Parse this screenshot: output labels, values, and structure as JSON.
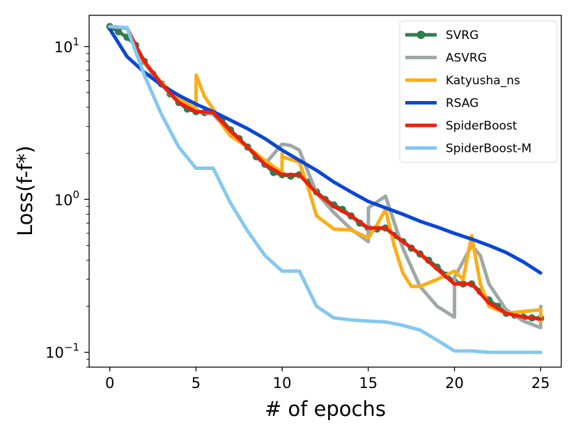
{
  "chart_data": {
    "type": "line",
    "title": "",
    "xlabel": "# of epochs",
    "ylabel": "Loss(f-f*)",
    "xscale": "linear",
    "yscale": "log",
    "xlim": [
      -1.2,
      26.2
    ],
    "ylim": [
      0.08,
      16
    ],
    "xticks": [
      0,
      5,
      10,
      15,
      20,
      25
    ],
    "yticks": [
      {
        "value": 0.1,
        "label": "10^-1"
      },
      {
        "value": 1,
        "label": "10^0"
      },
      {
        "value": 10,
        "label": "10^1"
      }
    ],
    "grid": false,
    "legend_position": "top-right",
    "series": [
      {
        "name": "SVRG",
        "color": "#2e7d4f",
        "marker": "circle",
        "x": [
          0,
          0.5,
          1,
          1.5,
          2,
          2.5,
          3,
          3.5,
          4,
          4.5,
          5,
          5.5,
          6,
          6.5,
          7,
          7.5,
          8,
          8.5,
          9,
          9.5,
          10,
          10.5,
          11,
          11.5,
          12,
          12.5,
          13,
          13.5,
          14,
          14.5,
          15,
          15.5,
          16,
          16.5,
          17,
          17.5,
          18,
          18.5,
          19,
          19.5,
          20,
          20.5,
          21,
          21.5,
          22,
          22.5,
          23,
          23.5,
          24,
          24.5,
          25
        ],
        "y": [
          13.5,
          12.5,
          11.5,
          10.2,
          8.0,
          6.6,
          5.7,
          4.9,
          4.3,
          3.9,
          3.75,
          3.7,
          3.7,
          3.3,
          2.85,
          2.5,
          2.2,
          1.9,
          1.7,
          1.5,
          1.45,
          1.42,
          1.45,
          1.3,
          1.12,
          1.0,
          0.92,
          0.86,
          0.78,
          0.7,
          0.65,
          0.64,
          0.65,
          0.58,
          0.53,
          0.48,
          0.44,
          0.4,
          0.36,
          0.32,
          0.29,
          0.28,
          0.28,
          0.25,
          0.22,
          0.2,
          0.18,
          0.175,
          0.17,
          0.168,
          0.167
        ]
      },
      {
        "name": "ASVRG",
        "color": "#9ea8a5",
        "marker": "none",
        "x": [
          0,
          1,
          1.5,
          2,
          3,
          4,
          5,
          5.5,
          6,
          7,
          8,
          9,
          10,
          10.5,
          11,
          12,
          13,
          14,
          15,
          15.01,
          16,
          17,
          18,
          19,
          20,
          20.01,
          21,
          21.5,
          22,
          23,
          24,
          25,
          25.01
        ],
        "y": [
          13.5,
          13.2,
          9.5,
          7.8,
          5.6,
          4.3,
          3.8,
          3.7,
          3.6,
          2.7,
          2.2,
          1.7,
          2.3,
          2.25,
          2.1,
          1.1,
          0.82,
          0.64,
          0.53,
          0.88,
          1.05,
          0.48,
          0.27,
          0.2,
          0.17,
          0.31,
          0.5,
          0.43,
          0.28,
          0.19,
          0.16,
          0.145,
          0.2
        ]
      },
      {
        "name": "Katyusha_ns",
        "color": "#fbae17",
        "marker": "none",
        "x": [
          0,
          1,
          1.5,
          2,
          3,
          4,
          5,
          5.01,
          5.5,
          6,
          6.5,
          7,
          8,
          9,
          9.99,
          10,
          10.01,
          11,
          11.5,
          12,
          13,
          14,
          15,
          15.5,
          16,
          16.5,
          17,
          17.5,
          18,
          19,
          20,
          20.5,
          21,
          21.5,
          22,
          23,
          24,
          25,
          25.01
        ],
        "y": [
          13.5,
          13.3,
          10,
          7.9,
          5.8,
          4.6,
          3.9,
          6.5,
          4.7,
          3.9,
          3.1,
          2.6,
          2.2,
          1.8,
          1.5,
          2.0,
          1.9,
          1.75,
          1.2,
          0.78,
          0.64,
          0.63,
          0.56,
          0.68,
          0.86,
          0.5,
          0.33,
          0.27,
          0.27,
          0.3,
          0.34,
          0.3,
          0.58,
          0.28,
          0.2,
          0.18,
          0.185,
          0.19,
          0.16
        ]
      },
      {
        "name": "RSAG",
        "color": "#0a47d6",
        "marker": "none",
        "x": [
          0,
          1,
          2,
          3,
          4,
          5,
          6,
          7,
          8,
          9,
          10,
          11,
          12,
          13,
          14,
          15,
          16,
          17,
          18,
          19,
          20,
          21,
          22,
          23,
          24,
          25
        ],
        "y": [
          13,
          8.6,
          6.8,
          5.6,
          4.8,
          4.2,
          3.75,
          3.3,
          2.9,
          2.5,
          2.1,
          1.8,
          1.55,
          1.3,
          1.12,
          0.97,
          0.88,
          0.8,
          0.72,
          0.66,
          0.6,
          0.55,
          0.5,
          0.45,
          0.39,
          0.33
        ]
      },
      {
        "name": "SpiderBoost",
        "color": "#ee1e0c",
        "marker": "none",
        "x": [
          0,
          1,
          1.5,
          2,
          3,
          4,
          5,
          6,
          7,
          8,
          9,
          10,
          11,
          12,
          13,
          14,
          15,
          16,
          17,
          18,
          19,
          20,
          21,
          22,
          23,
          24,
          25
        ],
        "y": [
          13.5,
          13.2,
          10.2,
          8.0,
          5.7,
          4.3,
          3.75,
          3.7,
          2.8,
          2.2,
          1.7,
          1.45,
          1.45,
          1.1,
          0.9,
          0.78,
          0.65,
          0.65,
          0.53,
          0.44,
          0.35,
          0.28,
          0.28,
          0.21,
          0.18,
          0.17,
          0.165
        ]
      },
      {
        "name": "SpiderBoost-M",
        "color": "#85c8ef",
        "marker": "none",
        "x": [
          0,
          1,
          2,
          3,
          4,
          5,
          6,
          7,
          8,
          9,
          10,
          10.5,
          11,
          12,
          13,
          14,
          15,
          16,
          17,
          18,
          19,
          20,
          21,
          22,
          23,
          24,
          25
        ],
        "y": [
          13.5,
          13.3,
          6.5,
          3.6,
          2.2,
          1.6,
          1.6,
          0.95,
          0.62,
          0.43,
          0.34,
          0.34,
          0.34,
          0.2,
          0.168,
          0.163,
          0.16,
          0.158,
          0.15,
          0.14,
          0.12,
          0.102,
          0.102,
          0.1,
          0.1,
          0.1,
          0.1
        ]
      }
    ]
  }
}
